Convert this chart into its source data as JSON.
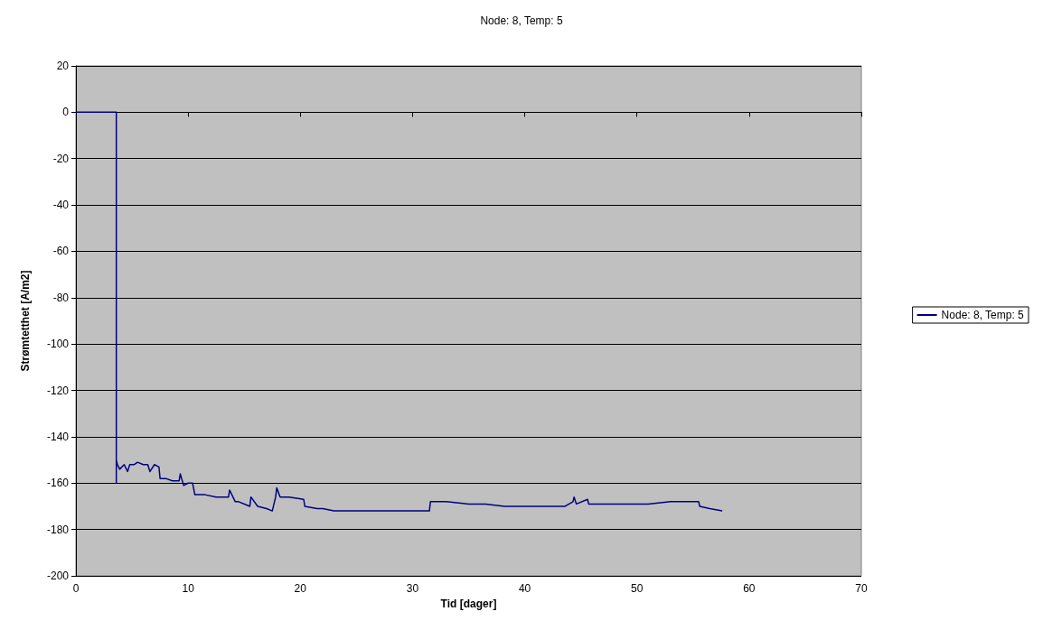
{
  "chart_data": {
    "type": "line",
    "title": "Node: 8, Temp: 5",
    "xlabel": "Tid [dager]",
    "ylabel": "Strømtetthet [A/m2]",
    "xlim": [
      0,
      70
    ],
    "xticks": [
      0,
      10,
      20,
      30,
      40,
      50,
      60,
      70
    ],
    "ylim": [
      -200,
      20
    ],
    "yticks": [
      -200,
      -180,
      -160,
      -140,
      -120,
      -100,
      -80,
      -60,
      -40,
      -20,
      0,
      20
    ],
    "grid": "y",
    "legend": "right",
    "marker": "none",
    "line_style": "solid",
    "series": [
      {
        "name": "Node: 8, Temp: 5",
        "color": "#000080",
        "x": [
          0,
          1,
          2,
          3,
          3.6,
          3.6,
          3.6,
          3.7,
          3.9,
          4.3,
          4.6,
          4.8,
          5.2,
          5.5,
          6.0,
          6.4,
          6.6,
          7.0,
          7.4,
          7.5,
          8.0,
          8.6,
          9.2,
          9.3,
          9.6,
          10.0,
          10.4,
          10.6,
          11.5,
          12.5,
          13.6,
          13.7,
          14.2,
          14.5,
          15.5,
          15.6,
          16.2,
          17.0,
          17.5,
          17.8,
          17.9,
          18.2,
          19.0,
          20.3,
          20.4,
          21.5,
          22.0,
          23.0,
          23.8,
          25.0,
          27.0,
          29.0,
          31.0,
          31.5,
          31.6,
          33.0,
          35.0,
          36.5,
          38.2,
          40.0,
          42.0,
          43.6,
          44.3,
          44.4,
          44.6,
          45.6,
          45.7,
          47.0,
          49.0,
          51.0,
          53.0,
          54.5,
          55.5,
          55.6,
          56.5,
          57.6
        ],
        "values": [
          0,
          0,
          0,
          0,
          0,
          -160,
          -150,
          -152,
          -154,
          -152,
          -155,
          -152,
          -152,
          -151,
          -152,
          -152,
          -155,
          -152,
          -153,
          -158,
          -158,
          -159,
          -159,
          -156,
          -161,
          -160,
          -160,
          -165,
          -165,
          -166,
          -166,
          -163,
          -168,
          -168,
          -170,
          -166,
          -170,
          -171,
          -172,
          -166,
          -162,
          -166,
          -166,
          -167,
          -170,
          -171,
          -171,
          -172,
          -172,
          -172,
          -172,
          -172,
          -172,
          -172,
          -168,
          -168,
          -169,
          -169,
          -170,
          -170,
          -170,
          -170,
          -168,
          -166,
          -169,
          -167,
          -169,
          -169,
          -169,
          -169,
          -168,
          -168,
          -168,
          -170,
          -171,
          -172
        ]
      }
    ]
  }
}
